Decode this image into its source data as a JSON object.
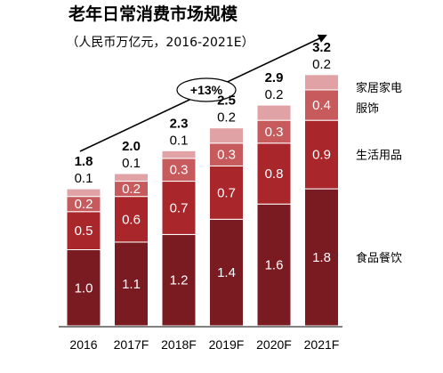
{
  "chart_data": {
    "type": "bar",
    "stacked": true,
    "title": "老年日常消费市场规模",
    "subtitle": "（人民币万亿元，2016-2021E）",
    "categories": [
      "2016",
      "2017F",
      "2018F",
      "2019F",
      "2020F",
      "2021F"
    ],
    "totals": [
      "1.8",
      "2.0",
      "2.3",
      "2.5",
      "2.9",
      "3.2"
    ],
    "series": [
      {
        "name": "食品餐饮",
        "values": [
          1.0,
          1.1,
          1.2,
          1.4,
          1.6,
          1.8
        ],
        "color": "#7a1a21"
      },
      {
        "name": "生活用品",
        "values": [
          0.5,
          0.6,
          0.7,
          0.7,
          0.8,
          0.9
        ],
        "color": "#a9262b"
      },
      {
        "name": "服饰",
        "values": [
          0.2,
          0.2,
          0.3,
          0.3,
          0.3,
          0.4
        ],
        "color": "#c65a5c"
      },
      {
        "name": "家居家电",
        "values": [
          0.1,
          0.1,
          0.1,
          0.2,
          0.2,
          0.2
        ],
        "color": "#e0a2a4"
      }
    ],
    "growth_annotation": "+13%",
    "legend_placement": "right",
    "ylim": [
      0,
      3.5
    ],
    "grid": false
  }
}
